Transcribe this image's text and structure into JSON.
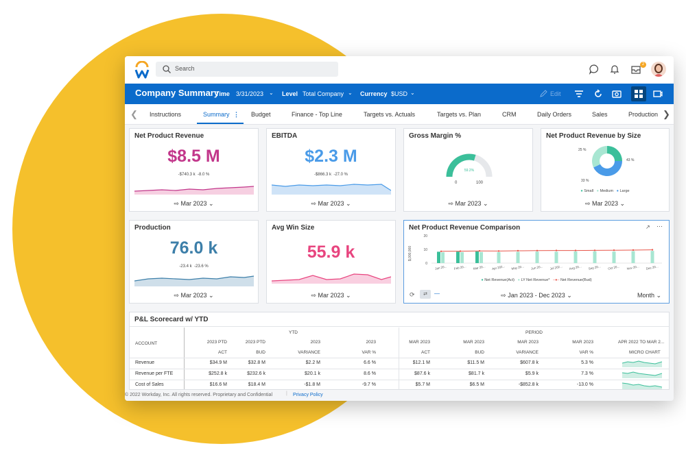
{
  "search": {
    "placeholder": "Search"
  },
  "header": {
    "title": "Company Summary",
    "time_label": "Time",
    "time_value": "3/31/2023",
    "level_label": "Level",
    "level_value": "Total Company",
    "currency_label": "Currency",
    "currency_value": "$USD",
    "edit_label": "Edit"
  },
  "notifications": {
    "inbox_count": "2"
  },
  "tabs": [
    "Instructions",
    "Summary",
    "Budget",
    "Finance - Top Line",
    "Targets vs. Actuals",
    "Targets vs. Plan",
    "CRM",
    "Daily Orders",
    "Sales",
    "Production"
  ],
  "cards": {
    "npr": {
      "title": "Net Product Revenue",
      "value": "$8.5 M",
      "delta_abs": "-$740.3 k",
      "delta_pct": "-8.0 %",
      "period": "Mar 2023"
    },
    "ebitda": {
      "title": "EBITDA",
      "value": "$2.3 M",
      "delta_abs": "-$866.3 k",
      "delta_pct": "-27.0 %",
      "period": "Mar 2023"
    },
    "gm": {
      "title": "Gross Margin %",
      "gauge_value": "59.2%",
      "gauge_min": "0",
      "gauge_max": "100",
      "gauge_fraction": 0.592,
      "period": "Mar 2023"
    },
    "size": {
      "title": "Net Product Revenue by Size",
      "pct_small": "25 %",
      "pct_large": "43 %",
      "pct_medium": "33 %",
      "legend_small": "Small",
      "legend_medium": "Medium",
      "legend_large": "Large",
      "period": "Mar 2023"
    },
    "production": {
      "title": "Production",
      "value": "76.0 k",
      "delta_abs": "-23.4 k",
      "delta_pct": "-23.6 %",
      "period": "Mar 2023"
    },
    "winsize": {
      "title": "Avg Win Size",
      "value": "55.9 k",
      "period": "Mar 2023"
    },
    "comparison": {
      "title": "Net Product Revenue Comparison",
      "ylabel": "$,000,000",
      "yticks": [
        "20",
        "10",
        "0"
      ],
      "xticks": [
        "Jan 20...",
        "Feb 20...",
        "Mar 20...",
        "Apr 202...",
        "May 20...",
        "Jun 20...",
        "Jul 202...",
        "Aug 20...",
        "Sep 20...",
        "Oct 20...",
        "Nov 20...",
        "Dec 20..."
      ],
      "legend_act": "Net Revenue(Act)",
      "legend_ly": "LY Net Revenue*",
      "legend_bud": "Net Revenue(Bud)",
      "period": "Jan 2023 - Dec 2023",
      "grain": "Month"
    }
  },
  "chart_data": {
    "type": "bar",
    "title": "Net Product Revenue Comparison",
    "ylabel": "$,000,000",
    "ylim": [
      0,
      20
    ],
    "categories": [
      "Jan 2023",
      "Feb 2023",
      "Mar 2023",
      "Apr 2023",
      "May 2023",
      "Jun 2023",
      "Jul 2023",
      "Aug 2023",
      "Sep 2023",
      "Oct 2023",
      "Nov 2023",
      "Dec 2023"
    ],
    "series": [
      {
        "name": "Net Revenue(Act)",
        "kind": "bar",
        "color": "#3bbf9a",
        "values": [
          8.3,
          8.4,
          8.5,
          null,
          null,
          null,
          null,
          null,
          null,
          null,
          null,
          null
        ]
      },
      {
        "name": "LY Net Revenue*",
        "kind": "bar",
        "color": "#a8e6d2",
        "values": [
          7.9,
          8.0,
          8.1,
          8.0,
          8.2,
          8.4,
          8.3,
          8.5,
          8.6,
          8.4,
          8.7,
          8.9
        ]
      },
      {
        "name": "Net Revenue(Bud)",
        "kind": "line",
        "color": "#e8564a",
        "values": [
          8.6,
          8.7,
          8.9,
          8.8,
          9.0,
          9.1,
          9.2,
          9.2,
          9.3,
          9.4,
          9.5,
          9.7
        ]
      }
    ]
  },
  "scorecard": {
    "title": "P&L Scorecard w/ YTD",
    "group_ytd": "YTD",
    "group_period": "PERIOD",
    "account_header": "ACCOUNT",
    "col_top": [
      "2023 PTD",
      "2023 PTD",
      "2023",
      "2023",
      "MAR 2023",
      "MAR 2023",
      "MAR 2023",
      "MAR 2023",
      "APR 2022 TO MAR 2..."
    ],
    "col_sub": [
      "ACT",
      "BUD",
      "VARIANCE",
      "VAR %",
      "ACT",
      "BUD",
      "VARIANCE",
      "VAR %",
      "MICRO CHART"
    ],
    "rows": [
      {
        "account": "Revenue",
        "cells": [
          "$34.9 M",
          "$32.8 M",
          "$2.2 M",
          "6.6 %",
          "$12.1 M",
          "$11.5 M",
          "$607.8 k",
          "5.3 %"
        ]
      },
      {
        "account": "Revenue per FTE",
        "cells": [
          "$252.8 k",
          "$232.6 k",
          "$20.1 k",
          "8.6 %",
          "$87.6 k",
          "$81.7 k",
          "$5.9 k",
          "7.3 %"
        ]
      },
      {
        "account": "Cost of Sales",
        "cells": [
          "$16.6 M",
          "$18.4 M",
          "-$1.8 M",
          "-9.7 %",
          "$5.7 M",
          "$6.5 M",
          "-$852.8 k",
          "-13.0 %"
        ]
      }
    ]
  },
  "footer": {
    "copyright": "© 2022 Workday, Inc. All rights reserved. Proprietary and Confidential",
    "privacy": "Privacy Policy"
  },
  "colors": {
    "brand_blue": "#0b6bcb",
    "magenta": "#c2378b",
    "sky": "#4a9be8",
    "pink": "#e8457f",
    "steel": "#3d7fa9",
    "teal": "#3bbf9a",
    "accent_yellow": "#f5c02c"
  }
}
